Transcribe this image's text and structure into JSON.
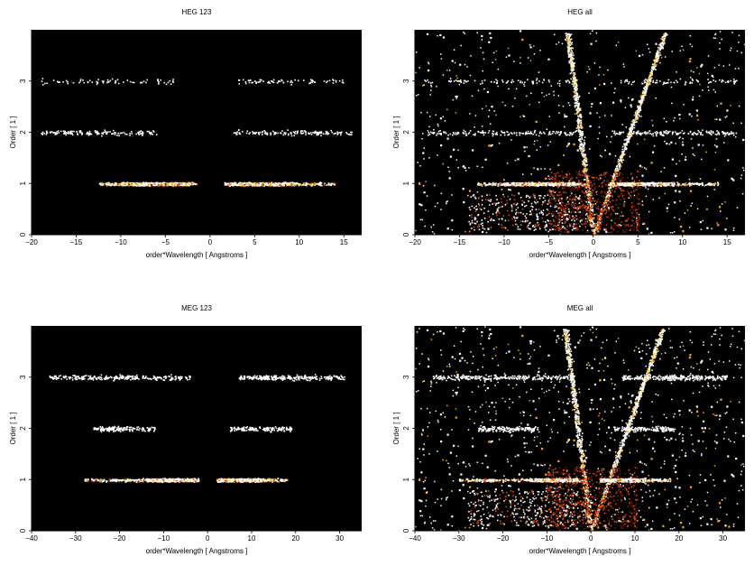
{
  "figure": {
    "background": "#ffffff",
    "plot_background": "#000000"
  },
  "chart_data": [
    {
      "type": "heatmap",
      "title": "HEG 123",
      "xlabel": "order*Wavelength [ Angstroms ]",
      "ylabel": "Order [ 1 ]",
      "xlim": [
        -20,
        17
      ],
      "ylim": [
        0,
        4
      ],
      "xticks": [
        -20,
        -15,
        -10,
        -5,
        0,
        5,
        10,
        15
      ],
      "yticks": [
        0,
        1,
        2,
        3
      ],
      "colormap": [
        "#000000",
        "#7a1a00",
        "#d9480f",
        "#ffb000",
        "#ffffff"
      ],
      "bands": [
        {
          "order": 1,
          "x_range": [
            -12.5,
            -1.5
          ],
          "density": "high",
          "core": [
            -10,
            -2
          ]
        },
        {
          "order": 1,
          "x_range": [
            1.5,
            14
          ],
          "density": "high",
          "core": [
            2,
            9.5
          ]
        },
        {
          "order": 2,
          "x_range": [
            -19,
            -6
          ],
          "density": "low"
        },
        {
          "order": 2,
          "x_range": [
            2.5,
            16
          ],
          "density": "low"
        },
        {
          "order": 3,
          "x_range": [
            -19,
            -4
          ],
          "density": "sparse"
        },
        {
          "order": 3,
          "x_range": [
            3,
            15
          ],
          "density": "sparse"
        }
      ]
    },
    {
      "type": "heatmap",
      "title": "HEG all",
      "xlabel": "order*Wavelength [ Angstroms ]",
      "ylabel": "Order [ 1 ]",
      "xlim": [
        -20,
        17
      ],
      "ylim": [
        0,
        4
      ],
      "xticks": [
        -20,
        -15,
        -10,
        -5,
        0,
        5,
        10,
        15
      ],
      "yticks": [
        0,
        1,
        2,
        3
      ],
      "colormap": [
        "#000000",
        "#7a1a00",
        "#d9480f",
        "#ffb000",
        "#ffffff"
      ],
      "bands": [
        {
          "order": 1,
          "x_range": [
            -13,
            -1
          ],
          "density": "high",
          "core": [
            -10,
            -2
          ]
        },
        {
          "order": 1,
          "x_range": [
            1.5,
            14
          ],
          "density": "high",
          "core": [
            2,
            9
          ]
        },
        {
          "order": 2,
          "x_range": [
            -19,
            -1
          ],
          "density": "low"
        },
        {
          "order": 2,
          "x_range": [
            2,
            16
          ],
          "density": "low"
        },
        {
          "order": 3,
          "x_range": [
            -19,
            -2
          ],
          "density": "sparse"
        },
        {
          "order": 3,
          "x_range": [
            3,
            16
          ],
          "density": "sparse"
        }
      ],
      "background_scatter": "moderate",
      "v_feature": true
    },
    {
      "type": "heatmap",
      "title": "MEG 123",
      "xlabel": "order*Wavelength [ Angstroms ]",
      "ylabel": "Order [ 1 ]",
      "xlim": [
        -40,
        35
      ],
      "ylim": [
        0,
        4
      ],
      "xticks": [
        -40,
        -30,
        -20,
        -10,
        0,
        10,
        20,
        30
      ],
      "yticks": [
        0,
        1,
        2,
        3
      ],
      "colormap": [
        "#000000",
        "#7a1a00",
        "#d9480f",
        "#ffb000",
        "#ffffff"
      ],
      "bands": [
        {
          "order": 1,
          "x_range": [
            -28,
            -2
          ],
          "density": "high",
          "core": [
            -14,
            -3
          ]
        },
        {
          "order": 1,
          "x_range": [
            2,
            18
          ],
          "density": "high",
          "core": [
            2,
            13
          ]
        },
        {
          "order": 2,
          "x_range": [
            -26,
            -12
          ],
          "density": "low"
        },
        {
          "order": 2,
          "x_range": [
            5,
            19
          ],
          "density": "low"
        },
        {
          "order": 3,
          "x_range": [
            -36,
            -4
          ],
          "density": "medium"
        },
        {
          "order": 3,
          "x_range": [
            7,
            31
          ],
          "density": "medium"
        }
      ]
    },
    {
      "type": "heatmap",
      "title": "MEG all",
      "xlabel": "order*Wavelength [ Angstroms ]",
      "ylabel": "Order [ 1 ]",
      "xlim": [
        -40,
        35
      ],
      "ylim": [
        0,
        4
      ],
      "xticks": [
        -40,
        -30,
        -20,
        -10,
        0,
        10,
        20,
        30
      ],
      "yticks": [
        0,
        1,
        2,
        3
      ],
      "colormap": [
        "#000000",
        "#7a1a00",
        "#d9480f",
        "#ffb000",
        "#ffffff"
      ],
      "bands": [
        {
          "order": 1,
          "x_range": [
            -30,
            -2
          ],
          "density": "high",
          "core": [
            -14,
            -3
          ]
        },
        {
          "order": 1,
          "x_range": [
            2,
            18
          ],
          "density": "high",
          "core": [
            2,
            12
          ]
        },
        {
          "order": 2,
          "x_range": [
            -26,
            -12
          ],
          "density": "low"
        },
        {
          "order": 2,
          "x_range": [
            5,
            19
          ],
          "density": "low"
        },
        {
          "order": 3,
          "x_range": [
            -36,
            -4
          ],
          "density": "medium"
        },
        {
          "order": 3,
          "x_range": [
            7,
            31
          ],
          "density": "medium"
        }
      ],
      "background_scatter": "heavy",
      "v_feature": true
    }
  ]
}
